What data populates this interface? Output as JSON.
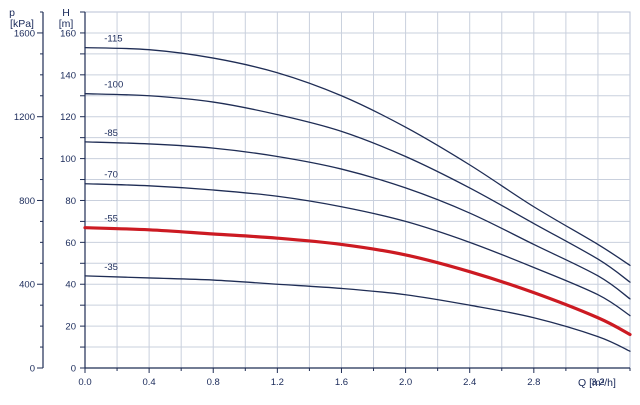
{
  "chart_data": {
    "type": "line",
    "grid": true,
    "x_axis": {
      "label": "Q [m³/h]",
      "range": [
        0,
        3.4
      ],
      "ticks": [
        "0.0",
        "0.4",
        "0.8",
        "1.2",
        "1.6",
        "2.0",
        "2.4",
        "2.8",
        "3.2"
      ]
    },
    "y_axis_head": {
      "label_line1": "H",
      "label_line2": "[m]",
      "range": [
        0,
        170
      ],
      "ticks": [
        "0",
        "20",
        "40",
        "60",
        "80",
        "100",
        "120",
        "140",
        "160"
      ]
    },
    "y_axis_pressure": {
      "label_line1": "p",
      "label_line2": "[kPa]",
      "range": [
        0,
        1700
      ],
      "ticks": [
        "0",
        "400",
        "800",
        "1200",
        "1600"
      ]
    },
    "series": [
      {
        "name": "-115",
        "color": "#1f2d55",
        "highlight": false,
        "x": [
          0,
          0.4,
          0.8,
          1.2,
          1.6,
          2.0,
          2.4,
          2.8,
          3.2,
          3.4
        ],
        "y": [
          153,
          152,
          148,
          141,
          130,
          115,
          97,
          77,
          59,
          49
        ]
      },
      {
        "name": "-100",
        "color": "#1f2d55",
        "highlight": false,
        "x": [
          0,
          0.4,
          0.8,
          1.2,
          1.6,
          2.0,
          2.4,
          2.8,
          3.2,
          3.4
        ],
        "y": [
          131,
          130,
          127,
          121,
          113,
          101,
          86,
          69,
          52,
          41
        ]
      },
      {
        "name": "-85",
        "color": "#1f2d55",
        "highlight": false,
        "x": [
          0,
          0.4,
          0.8,
          1.2,
          1.6,
          2.0,
          2.4,
          2.8,
          3.2,
          3.4
        ],
        "y": [
          108,
          107,
          105,
          101,
          95,
          86,
          74,
          59,
          44,
          33
        ]
      },
      {
        "name": "-70",
        "color": "#1f2d55",
        "highlight": false,
        "x": [
          0,
          0.4,
          0.8,
          1.2,
          1.6,
          2.0,
          2.4,
          2.8,
          3.2,
          3.4
        ],
        "y": [
          88,
          87,
          85,
          82,
          77,
          70,
          60,
          48,
          35,
          25
        ]
      },
      {
        "name": "-55",
        "color": "#cc1a22",
        "highlight": true,
        "x": [
          0,
          0.4,
          0.8,
          1.2,
          1.6,
          2.0,
          2.4,
          2.8,
          3.2,
          3.4
        ],
        "y": [
          67,
          66,
          64,
          62,
          59,
          54,
          46,
          36,
          24,
          16
        ]
      },
      {
        "name": "-35",
        "color": "#1f2d55",
        "highlight": false,
        "x": [
          0,
          0.4,
          0.8,
          1.2,
          1.6,
          2.0,
          2.4,
          2.8,
          3.2,
          3.4
        ],
        "y": [
          44,
          43,
          42,
          40,
          38,
          35,
          30,
          24,
          15,
          8
        ]
      }
    ]
  }
}
